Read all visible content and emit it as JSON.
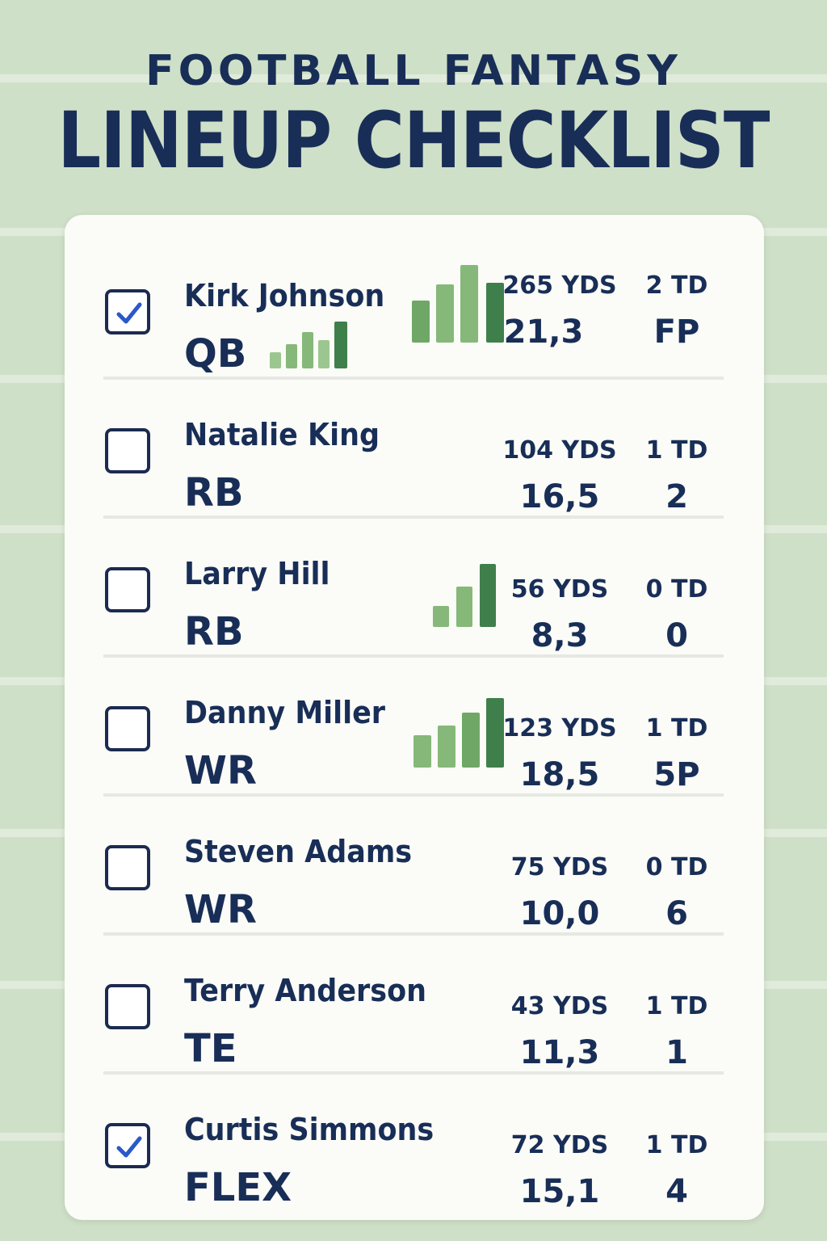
{
  "header": {
    "subtitle": "FOOTBALL FANTASY",
    "title": "LINEUP CHECKLIST"
  },
  "colors": {
    "background": "#cfe0c8",
    "card": "#fbfbf7",
    "text": "#182e57",
    "check": "#2b58c9",
    "bar_dark": "#3f7f4b",
    "bar_light": "#9cc68f"
  },
  "players": [
    {
      "name": "Kirk Johnson",
      "position": "QB",
      "yds": "265 YDS",
      "td": "2 TD",
      "points": "21,3",
      "extra": "FP",
      "checked": true
    },
    {
      "name": "Natalie King",
      "position": "RB",
      "yds": "104 YDS",
      "td": "1 TD",
      "points": "16,5",
      "extra": "2",
      "checked": false
    },
    {
      "name": "Larry Hill",
      "position": "RB",
      "yds": "56 YDS",
      "td": "0 TD",
      "points": "8,3",
      "extra": "0",
      "checked": false
    },
    {
      "name": "Danny Miller",
      "position": "WR",
      "yds": "123 YDS",
      "td": "1 TD",
      "points": "18,5",
      "extra": "5P",
      "checked": false
    },
    {
      "name": "Steven Adams",
      "position": "WR",
      "yds": "75 YDS",
      "td": "0 TD",
      "points": "10,0",
      "extra": "6",
      "checked": false
    },
    {
      "name": "Terry Anderson",
      "position": "TE",
      "yds": "43 YDS",
      "td": "1 TD",
      "points": "11,3",
      "extra": "1",
      "checked": false
    },
    {
      "name": "Curtis Simmons",
      "position": "FLEX",
      "yds": "72 YDS",
      "td": "1 TD",
      "points": "15,1",
      "extra": "4",
      "checked": true
    }
  ]
}
